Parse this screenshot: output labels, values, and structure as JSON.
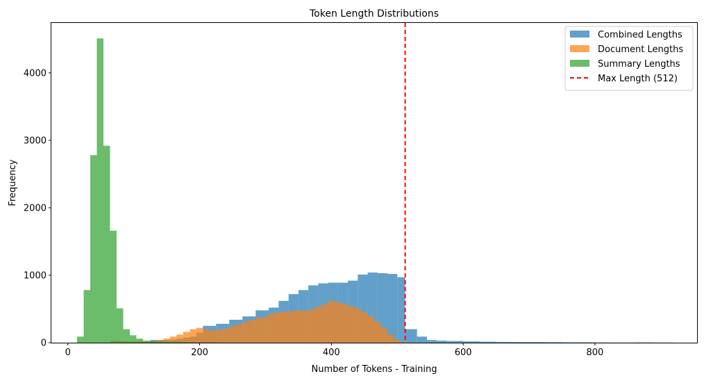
{
  "chart_data": {
    "type": "histogram",
    "title": "Token Length Distributions",
    "xlabel": "Number of Tokens - Training",
    "ylabel": "Frequency",
    "xlim": [
      -25,
      955
    ],
    "ylim": [
      0,
      4740
    ],
    "xticks": [
      0,
      200,
      400,
      600,
      800
    ],
    "yticks": [
      0,
      1000,
      2000,
      3000,
      4000
    ],
    "grid": false,
    "legend_position": "top-right",
    "series": [
      {
        "name": "Combined Lengths",
        "color": "#1f77b4",
        "bins": [
          [
            125,
            135,
            40
          ],
          [
            135,
            145,
            40
          ],
          [
            145,
            155,
            40
          ],
          [
            155,
            165,
            45
          ],
          [
            165,
            175,
            60
          ],
          [
            175,
            185,
            75
          ],
          [
            185,
            195,
            90
          ],
          [
            195,
            205,
            150
          ],
          [
            205,
            225,
            250
          ],
          [
            225,
            245,
            280
          ],
          [
            245,
            265,
            340
          ],
          [
            265,
            285,
            390
          ],
          [
            285,
            305,
            480
          ],
          [
            305,
            320,
            520
          ],
          [
            320,
            335,
            620
          ],
          [
            335,
            350,
            720
          ],
          [
            350,
            365,
            780
          ],
          [
            365,
            380,
            850
          ],
          [
            380,
            395,
            880
          ],
          [
            395,
            410,
            890
          ],
          [
            410,
            425,
            890
          ],
          [
            425,
            440,
            920
          ],
          [
            440,
            455,
            1010
          ],
          [
            455,
            470,
            1040
          ],
          [
            470,
            485,
            1030
          ],
          [
            485,
            500,
            1020
          ],
          [
            500,
            512,
            970
          ],
          [
            512,
            530,
            200
          ],
          [
            530,
            545,
            90
          ],
          [
            545,
            560,
            40
          ],
          [
            560,
            575,
            30
          ],
          [
            575,
            600,
            25
          ],
          [
            600,
            625,
            20
          ],
          [
            625,
            650,
            15
          ],
          [
            650,
            675,
            12
          ],
          [
            675,
            700,
            10
          ],
          [
            700,
            725,
            10
          ],
          [
            725,
            750,
            8
          ],
          [
            750,
            775,
            6
          ],
          [
            775,
            800,
            5
          ],
          [
            800,
            830,
            3
          ],
          [
            830,
            860,
            2
          ],
          [
            860,
            890,
            4
          ],
          [
            890,
            920,
            2
          ]
        ]
      },
      {
        "name": "Document Lengths",
        "color": "#ff7f0e",
        "bins": [
          [
            65,
            75,
            30
          ],
          [
            75,
            85,
            25
          ],
          [
            85,
            95,
            20
          ],
          [
            95,
            105,
            20
          ],
          [
            105,
            115,
            20
          ],
          [
            115,
            125,
            20
          ],
          [
            125,
            135,
            25
          ],
          [
            135,
            145,
            40
          ],
          [
            145,
            155,
            60
          ],
          [
            155,
            165,
            90
          ],
          [
            165,
            175,
            120
          ],
          [
            175,
            185,
            160
          ],
          [
            185,
            195,
            200
          ],
          [
            195,
            205,
            220
          ],
          [
            205,
            215,
            200
          ],
          [
            215,
            225,
            180
          ],
          [
            225,
            235,
            190
          ],
          [
            235,
            245,
            210
          ],
          [
            245,
            255,
            240
          ],
          [
            255,
            265,
            270
          ],
          [
            265,
            275,
            310
          ],
          [
            275,
            285,
            340
          ],
          [
            285,
            295,
            370
          ],
          [
            295,
            305,
            380
          ],
          [
            305,
            315,
            430
          ],
          [
            315,
            325,
            450
          ],
          [
            325,
            335,
            460
          ],
          [
            335,
            345,
            470
          ],
          [
            345,
            355,
            480
          ],
          [
            355,
            365,
            470
          ],
          [
            365,
            375,
            490
          ],
          [
            375,
            385,
            530
          ],
          [
            385,
            395,
            570
          ],
          [
            395,
            405,
            620
          ],
          [
            405,
            415,
            600
          ],
          [
            415,
            425,
            570
          ],
          [
            425,
            435,
            540
          ],
          [
            435,
            445,
            510
          ],
          [
            445,
            455,
            450
          ],
          [
            455,
            465,
            390
          ],
          [
            465,
            475,
            310
          ],
          [
            475,
            485,
            220
          ],
          [
            485,
            495,
            120
          ],
          [
            495,
            505,
            40
          ],
          [
            505,
            515,
            10
          ]
        ]
      },
      {
        "name": "Summary Lengths",
        "color": "#2ca02c",
        "bins": [
          [
            14,
            24,
            90
          ],
          [
            24,
            34,
            780
          ],
          [
            34,
            44,
            2780
          ],
          [
            44,
            54,
            4510
          ],
          [
            54,
            64,
            2920
          ],
          [
            64,
            74,
            1660
          ],
          [
            74,
            84,
            510
          ],
          [
            84,
            94,
            200
          ],
          [
            94,
            104,
            110
          ],
          [
            104,
            114,
            60
          ],
          [
            114,
            124,
            30
          ],
          [
            124,
            134,
            25
          ],
          [
            134,
            144,
            20
          ],
          [
            144,
            154,
            15
          ],
          [
            154,
            164,
            12
          ],
          [
            164,
            174,
            10
          ],
          [
            174,
            184,
            8
          ],
          [
            184,
            194,
            6
          ],
          [
            194,
            204,
            5
          ],
          [
            204,
            214,
            4
          ],
          [
            214,
            224,
            3
          ],
          [
            224,
            234,
            2
          ]
        ]
      }
    ],
    "reference_line": {
      "name": "Max Length (512)",
      "x": 512,
      "color": "#ff0000",
      "style": "dashed"
    }
  }
}
